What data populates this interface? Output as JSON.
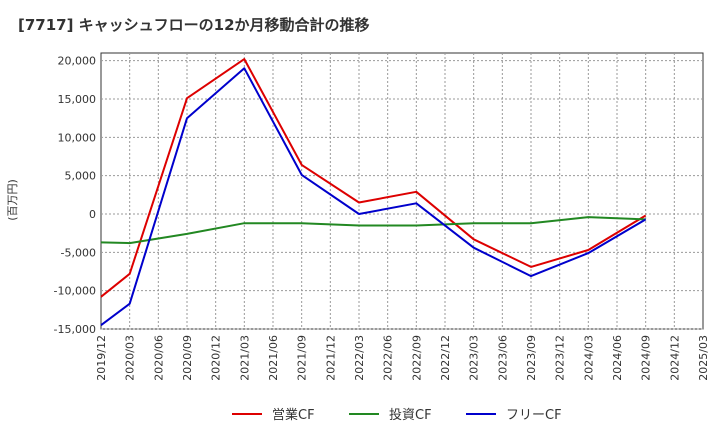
{
  "chart_data": {
    "type": "line",
    "title": "[7717]  キャッシュフローの12か月移動合計の推移",
    "ylabel": "(百万円)",
    "xlabel": "",
    "ylim": [
      -15000,
      21000
    ],
    "yticks": [
      20000,
      15000,
      10000,
      5000,
      0,
      -5000,
      -10000,
      -15000
    ],
    "ytick_labels": [
      "20,000",
      "15,000",
      "10,000",
      "5,000",
      "0",
      "-5,000",
      "-10,000",
      "-15,000"
    ],
    "categories": [
      "2019/12",
      "2020/03",
      "2020/06",
      "2020/09",
      "2020/12",
      "2021/03",
      "2021/06",
      "2021/09",
      "2021/12",
      "2022/03",
      "2022/06",
      "2022/09",
      "2022/12",
      "2023/03",
      "2023/06",
      "2023/09",
      "2023/12",
      "2024/03",
      "2024/06",
      "2024/09",
      "2024/12",
      "2025/03"
    ],
    "grid": true,
    "legend_position": "bottom",
    "series": [
      {
        "name": "営業CF",
        "color": "#dd0000",
        "values": [
          -10800,
          -7800,
          null,
          15100,
          null,
          20200,
          null,
          6400,
          null,
          1500,
          null,
          2900,
          null,
          -3300,
          null,
          -6900,
          null,
          -4700,
          null,
          -200,
          null,
          null
        ]
      },
      {
        "name": "投資CF",
        "color": "#228822",
        "values": [
          -3700,
          -3800,
          null,
          -2600,
          null,
          -1200,
          null,
          -1200,
          null,
          -1500,
          null,
          -1500,
          null,
          -1200,
          null,
          -1200,
          null,
          -400,
          null,
          -700,
          null,
          null
        ]
      },
      {
        "name": "フリーCF",
        "color": "#0000cc",
        "values": [
          -14500,
          -11700,
          null,
          12500,
          null,
          19000,
          null,
          5100,
          null,
          0,
          null,
          1400,
          null,
          -4400,
          null,
          -8100,
          null,
          -5100,
          null,
          -700,
          null,
          null
        ]
      }
    ]
  }
}
